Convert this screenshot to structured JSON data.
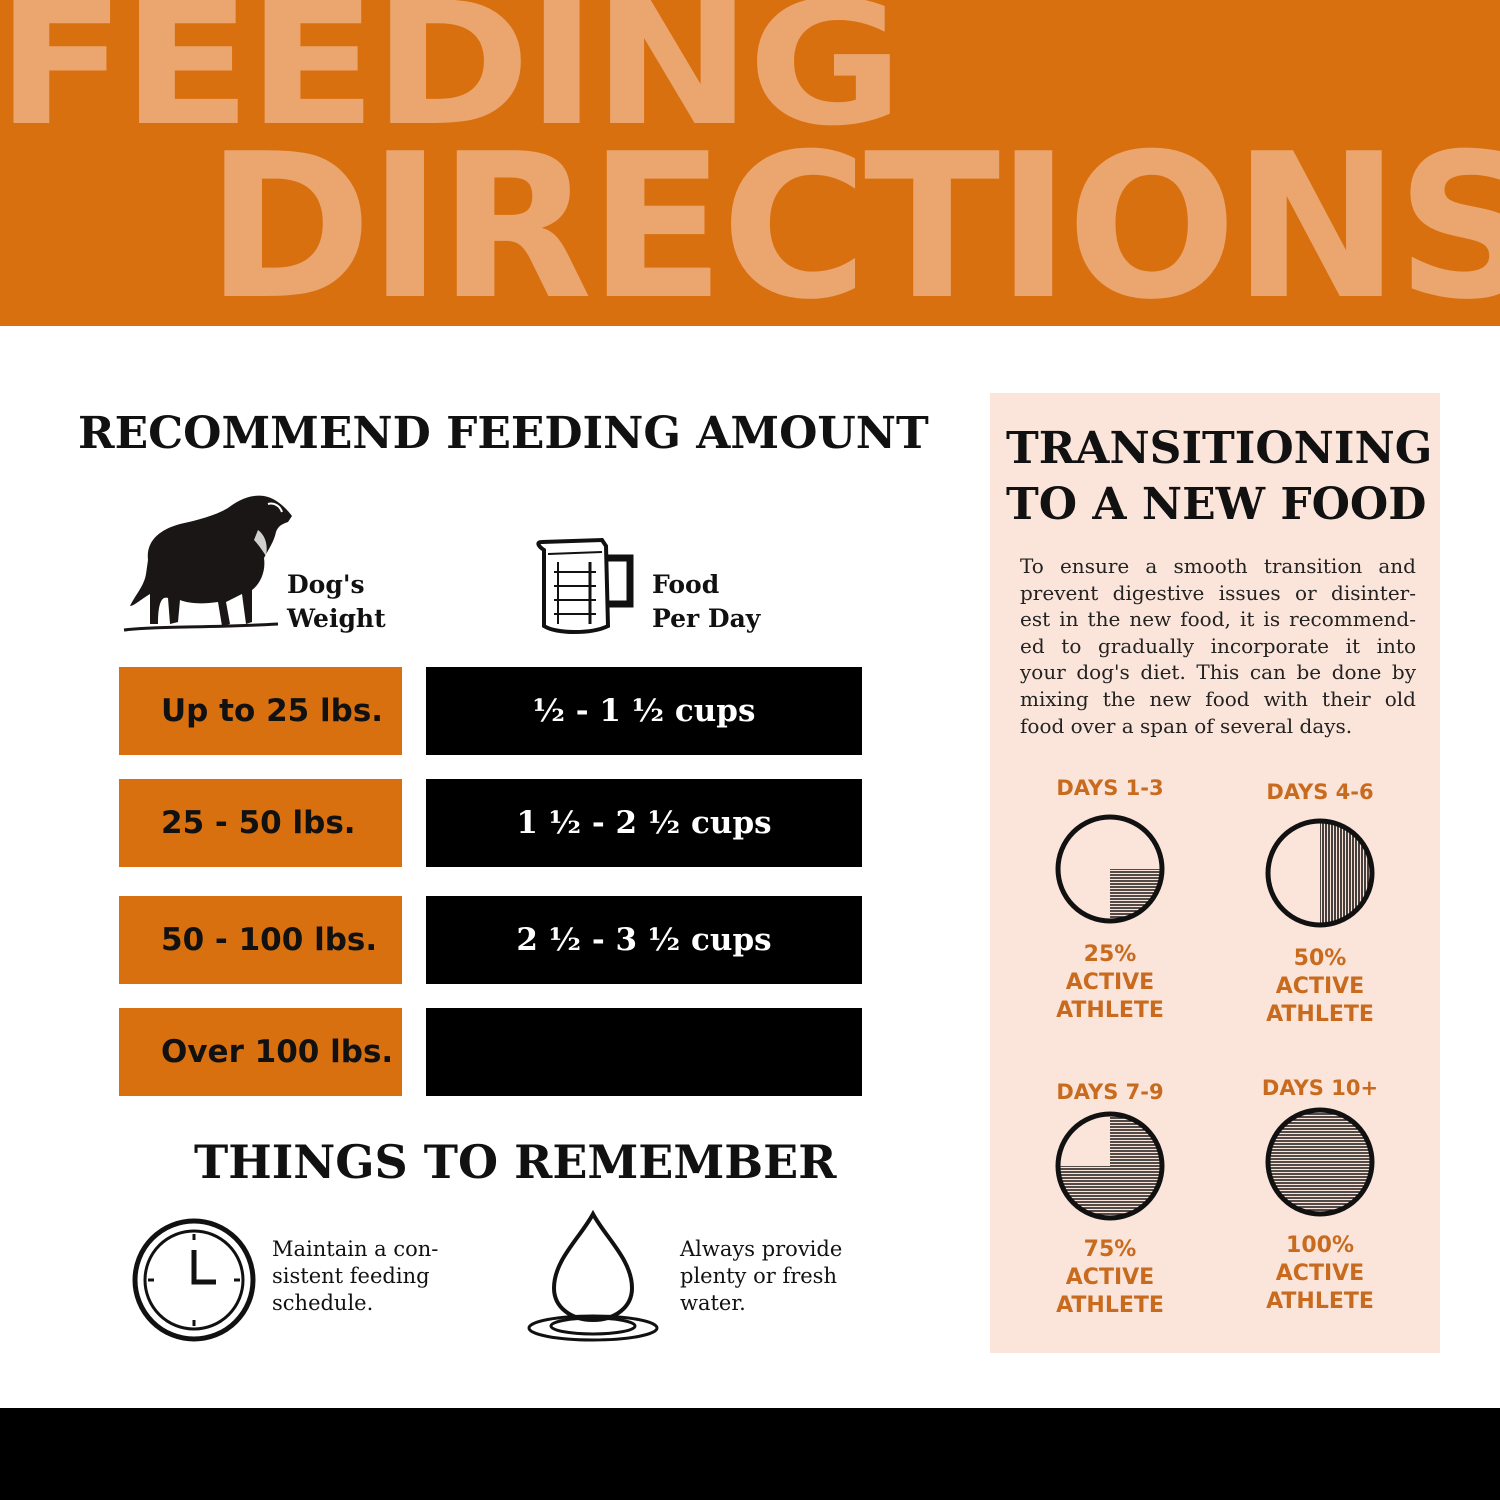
{
  "banner": {
    "line1": "FEEDING",
    "line2": "DIRECTIONS"
  },
  "feeding": {
    "title": "RECOMMEND FEEDING AMOUNT",
    "weight_header_1": "Dog's",
    "weight_header_2": "Weight",
    "food_header_1": "Food",
    "food_header_2": "Per Day",
    "rows": [
      {
        "weight": "Up to 25 lbs.",
        "food": "½ - 1 ½ cups"
      },
      {
        "weight": "25  - 50 lbs.",
        "food": "1 ½ - 2 ½ cups"
      },
      {
        "weight": "50 -  100 lbs.",
        "food": "2 ½ - 3 ½ cups"
      },
      {
        "weight": "Over 100 lbs.",
        "food": ""
      }
    ]
  },
  "remember": {
    "title": "THINGS TO REMEMBER",
    "tip1": "Maintain a con- sistent feeding schedule.",
    "tip2": "Always provide plenty or fresh water."
  },
  "transition": {
    "title_1": "TRANSITIONING",
    "title_2": "TO A NEW FOOD",
    "body": "To ensure a smooth transition and prevent digestive issues or disinter- est in the new food, it is recommend- ed to gradually incorporate it into your dog's diet. This can be done by mixing the new food with their old food over a span of several days.",
    "stages": [
      {
        "days": "DAYS 1-3",
        "percent": "25%",
        "line2": "ACTIVE",
        "line3": "ATHLETE",
        "fraction": 0.25
      },
      {
        "days": "DAYS 4-6",
        "percent": "50%",
        "line2": "ACTIVE",
        "line3": "ATHLETE",
        "fraction": 0.5
      },
      {
        "days": "DAYS 7-9",
        "percent": "75%",
        "line2": "ACTIVE",
        "line3": "ATHLETE",
        "fraction": 0.75
      },
      {
        "days": "DAYS 10+",
        "percent": "100%",
        "line2": "ACTIVE",
        "line3": "ATHLETE",
        "fraction": 1.0
      }
    ]
  },
  "colors": {
    "orange": "#d9700f",
    "banner_text": "#eaa66e",
    "panel_bg": "#fbe5da",
    "accent_text": "#c86b1f"
  },
  "icons": {
    "dog": "dog-icon",
    "cup": "measuring-cup-icon",
    "clock": "clock-icon",
    "drop": "water-drop-icon"
  }
}
